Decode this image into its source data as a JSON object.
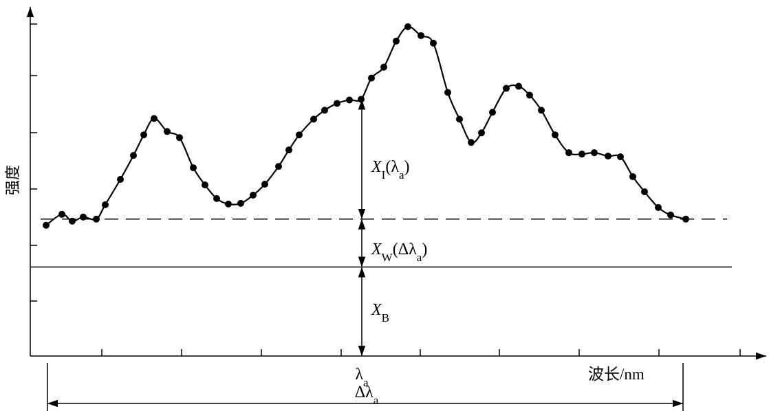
{
  "chart_data": {
    "type": "line",
    "y_label": "强度",
    "x_label": "波长/nm",
    "xlim": [
      0,
      10.7
    ],
    "ylim": [
      0,
      5.1
    ],
    "color": "#000000",
    "x": [
      0.23,
      0.46,
      0.61,
      0.77,
      0.96,
      1.09,
      1.31,
      1.5,
      1.65,
      1.8,
      1.99,
      2.17,
      2.37,
      2.54,
      2.71,
      2.88,
      3.06,
      3.24,
      3.41,
      3.61,
      3.76,
      3.91,
      4.12,
      4.28,
      4.46,
      4.64,
      4.81,
      4.96,
      5.14,
      5.32,
      5.49,
      5.68,
      5.86,
      6.07,
      6.24,
      6.41,
      6.56,
      6.72,
      6.92,
      7.1,
      7.26,
      7.43,
      7.63,
      7.83,
      8.02,
      8.2,
      8.4,
      8.58,
      8.76,
      8.93,
      9.13,
      9.31,
      9.53
    ],
    "values": [
      1.91,
      2.07,
      1.97,
      2.03,
      2.0,
      2.21,
      2.58,
      2.93,
      3.23,
      3.47,
      3.28,
      3.19,
      2.75,
      2.5,
      2.3,
      2.22,
      2.23,
      2.35,
      2.51,
      2.77,
      3.01,
      3.23,
      3.46,
      3.59,
      3.69,
      3.74,
      3.75,
      4.06,
      4.22,
      4.6,
      4.81,
      4.68,
      4.57,
      3.85,
      3.46,
      3.12,
      3.26,
      3.56,
      3.91,
      3.94,
      3.81,
      3.59,
      3.23,
      2.97,
      2.95,
      2.97,
      2.92,
      2.91,
      2.62,
      2.4,
      2.17,
      2.06,
      2.0
    ],
    "wing_level": 2.0,
    "background_level": 1.3,
    "lambda_a": {
      "x": 4.82,
      "label": [
        "λ",
        "a"
      ]
    },
    "window": {
      "x": [
        0.25,
        9.49
      ],
      "label": [
        "Δλ",
        "a"
      ]
    },
    "intensity_label": [
      "X",
      "I",
      "(λ",
      "a",
      ")"
    ],
    "wing_label": [
      "X",
      "W",
      "(Δλ",
      "a",
      ")"
    ],
    "background_label": [
      "X",
      "B"
    ]
  }
}
